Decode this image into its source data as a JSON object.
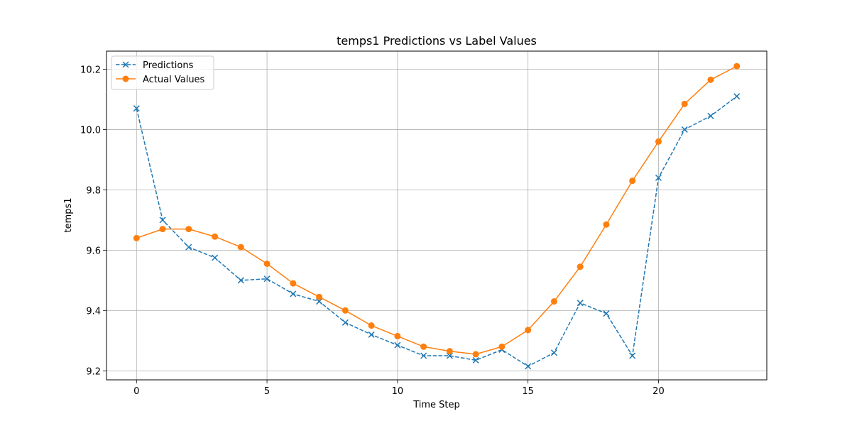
{
  "chart_data": {
    "type": "line",
    "title": "temps1 Predictions vs Label Values",
    "xlabel": "Time Step",
    "ylabel": "temps1",
    "xlim": [
      -1.15,
      24.15
    ],
    "ylim": [
      9.17,
      10.26
    ],
    "xticks": [
      0,
      5,
      10,
      15,
      20
    ],
    "yticks": [
      9.2,
      9.4,
      9.6,
      9.8,
      10.0,
      10.2
    ],
    "ytick_labels": [
      "9.2",
      "9.4",
      "9.6",
      "9.8",
      "10.0",
      "10.2"
    ],
    "grid": true,
    "legend_position": "top-left",
    "x": [
      0,
      1,
      2,
      3,
      4,
      5,
      6,
      7,
      8,
      9,
      10,
      11,
      12,
      13,
      14,
      15,
      16,
      17,
      18,
      19,
      20,
      21,
      22,
      23
    ],
    "series": [
      {
        "name": "Predictions",
        "color": "#1f77b4",
        "linestyle": "dashed",
        "marker": "x",
        "values": [
          10.07,
          9.7,
          9.61,
          9.575,
          9.5,
          9.505,
          9.455,
          9.43,
          9.36,
          9.32,
          9.285,
          9.25,
          9.25,
          9.235,
          9.27,
          9.215,
          9.26,
          9.425,
          9.39,
          9.25,
          9.84,
          10.0,
          10.045,
          10.11
        ]
      },
      {
        "name": "Actual Values",
        "color": "#ff7f0e",
        "linestyle": "solid",
        "marker": "o",
        "values": [
          9.64,
          9.67,
          9.67,
          9.645,
          9.61,
          9.555,
          9.49,
          9.445,
          9.4,
          9.35,
          9.315,
          9.28,
          9.265,
          9.255,
          9.28,
          9.335,
          9.43,
          9.545,
          9.685,
          9.83,
          9.96,
          10.085,
          10.165,
          10.21
        ]
      }
    ]
  }
}
